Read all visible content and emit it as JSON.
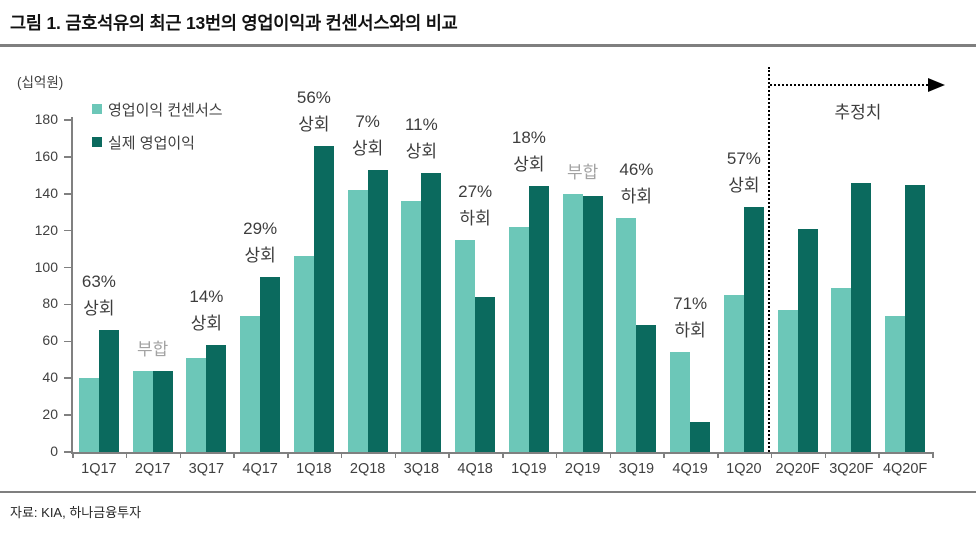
{
  "header": {
    "title": "그림 1. 금호석유의 최근 13번의 영업이익과 컨센서스와의 비교"
  },
  "footer": {
    "source": "자료: KIA, 하나금융투자"
  },
  "chart_data": {
    "type": "bar",
    "title": "금호석유의 최근 13번의 영업이익과 컨센서스와의 비교",
    "unit_label": "(십억원)",
    "ylim": [
      0,
      180
    ],
    "ytick_step": 20,
    "grid": false,
    "legend_position": "top-left",
    "categories": [
      "1Q17",
      "2Q17",
      "3Q17",
      "4Q17",
      "1Q18",
      "2Q18",
      "3Q18",
      "4Q18",
      "1Q19",
      "2Q19",
      "3Q19",
      "4Q19",
      "1Q20",
      "2Q20F",
      "3Q20F",
      "4Q20F"
    ],
    "series": [
      {
        "name": "영업이익 컨센서스",
        "color": "#6CC7B8",
        "values": [
          40,
          44,
          51,
          74,
          106,
          142,
          136,
          115,
          122,
          140,
          127,
          54,
          85,
          77,
          89,
          74
        ]
      },
      {
        "name": "실제 영업이익",
        "color": "#0B6A5E",
        "values": [
          66,
          44,
          58,
          95,
          166,
          153,
          151,
          84,
          144,
          139,
          69,
          16,
          133,
          121,
          146,
          145
        ]
      }
    ],
    "annotations": [
      {
        "category": "1Q17",
        "text": "63% 상회",
        "muted": false
      },
      {
        "category": "2Q17",
        "text": "부합",
        "muted": true
      },
      {
        "category": "3Q17",
        "text": "14% 상회",
        "muted": false
      },
      {
        "category": "4Q17",
        "text": "29% 상회",
        "muted": false
      },
      {
        "category": "1Q18",
        "text": "56% 상회",
        "muted": false
      },
      {
        "category": "2Q18",
        "text": "7% 상회",
        "muted": false
      },
      {
        "category": "3Q18",
        "text": "11% 상회",
        "muted": false
      },
      {
        "category": "4Q18",
        "text": "27% 하회",
        "muted": false
      },
      {
        "category": "1Q19",
        "text": "18% 상회",
        "muted": false
      },
      {
        "category": "2Q19",
        "text": "부합",
        "muted": true
      },
      {
        "category": "3Q19",
        "text": "46% 하회",
        "muted": false
      },
      {
        "category": "4Q19",
        "text": "71% 하회",
        "muted": false
      },
      {
        "category": "1Q20",
        "text": "57% 상회",
        "muted": false
      }
    ],
    "forecast": {
      "label": "추정치",
      "start_category": "2Q20F"
    }
  }
}
